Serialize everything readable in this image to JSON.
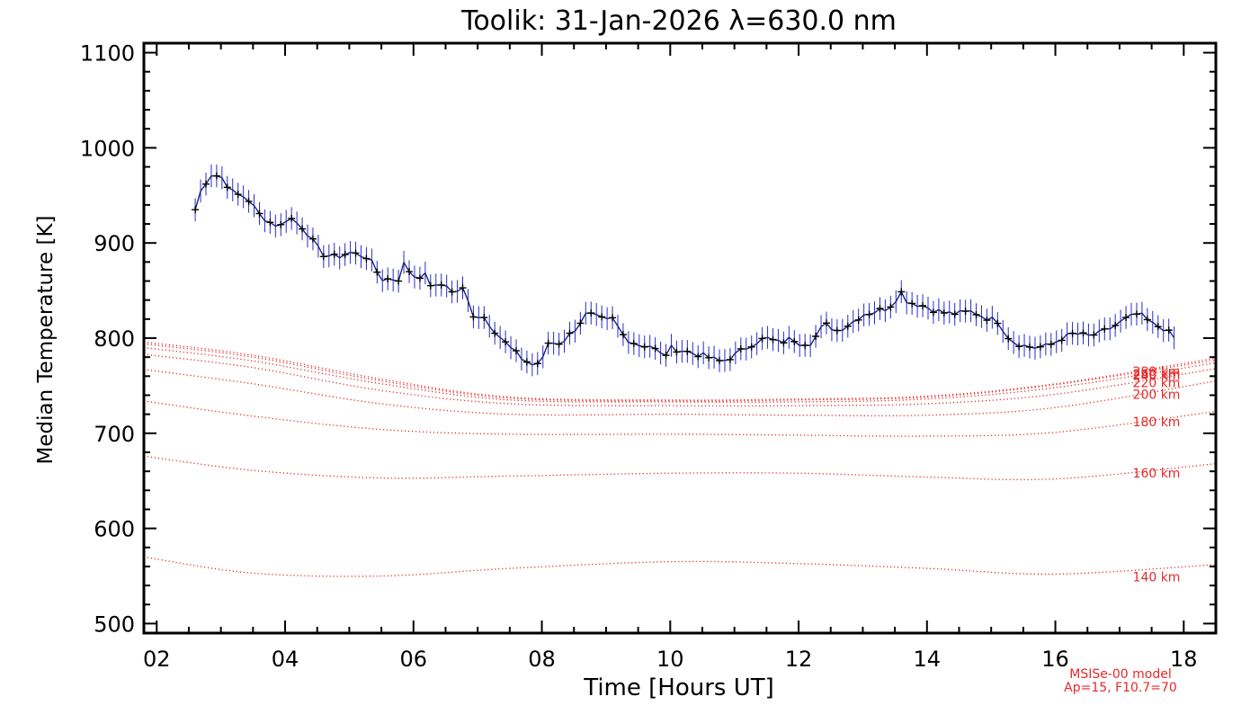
{
  "chart_data": {
    "type": "line",
    "title": "Toolik: 31-Jan-2026 λ=630.0 nm",
    "xlabel": "Time [Hours UT]",
    "ylabel": "Median Temperature [K]",
    "xlim": [
      1.8,
      18.5
    ],
    "ylim": [
      490,
      1110
    ],
    "x_ticks": [
      2,
      4,
      6,
      8,
      10,
      12,
      14,
      16,
      18
    ],
    "x_tick_labels": [
      "02",
      "04",
      "06",
      "08",
      "10",
      "12",
      "14",
      "16",
      "18"
    ],
    "y_ticks": [
      500,
      600,
      700,
      800,
      900,
      1000,
      1100
    ],
    "y_tick_labels": [
      "500",
      "600",
      "700",
      "800",
      "900",
      "1000",
      "1100"
    ],
    "measured": {
      "name": "Median temperature",
      "color": "#1a237e",
      "error_bar_color": "#2a2ad0",
      "error": 12,
      "anchors": [
        [
          2.6,
          935
        ],
        [
          2.7,
          958
        ],
        [
          2.85,
          972
        ],
        [
          3.0,
          970
        ],
        [
          3.2,
          952
        ],
        [
          3.4,
          948
        ],
        [
          3.6,
          930
        ],
        [
          3.8,
          920
        ],
        [
          3.95,
          918
        ],
        [
          4.05,
          928
        ],
        [
          4.3,
          915
        ],
        [
          4.5,
          895
        ],
        [
          4.6,
          888
        ],
        [
          4.8,
          885
        ],
        [
          5.0,
          890
        ],
        [
          5.3,
          885
        ],
        [
          5.5,
          862
        ],
        [
          5.8,
          862
        ],
        [
          5.85,
          878
        ],
        [
          6.0,
          865
        ],
        [
          6.2,
          866
        ],
        [
          6.3,
          852
        ],
        [
          6.5,
          858
        ],
        [
          6.6,
          848
        ],
        [
          6.8,
          852
        ],
        [
          6.9,
          825
        ],
        [
          7.1,
          822
        ],
        [
          7.3,
          805
        ],
        [
          7.5,
          790
        ],
        [
          7.7,
          778
        ],
        [
          7.85,
          772
        ],
        [
          8.0,
          775
        ],
        [
          8.1,
          795
        ],
        [
          8.3,
          795
        ],
        [
          8.5,
          808
        ],
        [
          8.7,
          826
        ],
        [
          8.85,
          822
        ],
        [
          9.0,
          818
        ],
        [
          9.1,
          820
        ],
        [
          9.3,
          800
        ],
        [
          9.5,
          793
        ],
        [
          9.7,
          792
        ],
        [
          9.9,
          780
        ],
        [
          10.0,
          790
        ],
        [
          10.3,
          785
        ],
        [
          10.5,
          782
        ],
        [
          10.8,
          775
        ],
        [
          11.0,
          782
        ],
        [
          11.3,
          795
        ],
        [
          11.5,
          800
        ],
        [
          11.7,
          795
        ],
        [
          11.9,
          800
        ],
        [
          12.0,
          795
        ],
        [
          12.2,
          795
        ],
        [
          12.4,
          815
        ],
        [
          12.6,
          808
        ],
        [
          12.8,
          815
        ],
        [
          13.0,
          825
        ],
        [
          13.2,
          828
        ],
        [
          13.4,
          832
        ],
        [
          13.6,
          848
        ],
        [
          13.7,
          838
        ],
        [
          13.9,
          835
        ],
        [
          14.1,
          830
        ],
        [
          14.3,
          826
        ],
        [
          14.5,
          826
        ],
        [
          14.7,
          828
        ],
        [
          14.9,
          822
        ],
        [
          15.1,
          818
        ],
        [
          15.3,
          798
        ],
        [
          15.5,
          792
        ],
        [
          15.7,
          790
        ],
        [
          15.9,
          792
        ],
        [
          16.1,
          800
        ],
        [
          16.3,
          805
        ],
        [
          16.5,
          802
        ],
        [
          16.7,
          805
        ],
        [
          16.9,
          812
        ],
        [
          17.1,
          820
        ],
        [
          17.3,
          826
        ],
        [
          17.5,
          815
        ],
        [
          17.7,
          810
        ],
        [
          17.85,
          800
        ]
      ]
    },
    "model_series": [
      {
        "name": "140 km",
        "label": "140 km",
        "values": [
          [
            1.8,
            570
          ],
          [
            3.5,
            553
          ],
          [
            5.5,
            550
          ],
          [
            7.5,
            558
          ],
          [
            10.0,
            565
          ],
          [
            12.0,
            563
          ],
          [
            14.0,
            558
          ],
          [
            16.0,
            552
          ],
          [
            18.5,
            562
          ]
        ]
      },
      {
        "name": "160 km",
        "label": "160 km",
        "values": [
          [
            1.8,
            676
          ],
          [
            3.5,
            661
          ],
          [
            5.5,
            653
          ],
          [
            7.5,
            655
          ],
          [
            10.0,
            658
          ],
          [
            12.0,
            658
          ],
          [
            14.0,
            654
          ],
          [
            16.0,
            652
          ],
          [
            18.5,
            668
          ]
        ]
      },
      {
        "name": "180 km",
        "label": "180 km",
        "values": [
          [
            1.8,
            734
          ],
          [
            3.5,
            718
          ],
          [
            5.5,
            704
          ],
          [
            7.5,
            699
          ],
          [
            10.0,
            699
          ],
          [
            12.0,
            698
          ],
          [
            14.0,
            697
          ],
          [
            16.0,
            701
          ],
          [
            18.5,
            723
          ]
        ]
      },
      {
        "name": "200 km",
        "label": "200 km",
        "values": [
          [
            1.8,
            767
          ],
          [
            3.5,
            752
          ],
          [
            5.5,
            731
          ],
          [
            7.5,
            720
          ],
          [
            10.0,
            720
          ],
          [
            12.0,
            719
          ],
          [
            14.0,
            719
          ],
          [
            16.0,
            727
          ],
          [
            18.5,
            755
          ]
        ]
      },
      {
        "name": "220 km",
        "label": "220 km",
        "values": [
          [
            1.8,
            783
          ],
          [
            3.5,
            769
          ],
          [
            5.5,
            745
          ],
          [
            7.5,
            731
          ],
          [
            10.0,
            729
          ],
          [
            12.0,
            729
          ],
          [
            14.0,
            731
          ],
          [
            16.0,
            741
          ],
          [
            18.5,
            768
          ]
        ]
      },
      {
        "name": "240 km",
        "label": "240 km",
        "values": [
          [
            1.8,
            790
          ],
          [
            3.5,
            776
          ],
          [
            5.5,
            752
          ],
          [
            7.5,
            735
          ],
          [
            10.0,
            733
          ],
          [
            12.0,
            733
          ],
          [
            14.0,
            736
          ],
          [
            16.0,
            748
          ],
          [
            18.5,
            774
          ]
        ]
      },
      {
        "name": "260 km",
        "label": "260 km",
        "values": [
          [
            1.8,
            794
          ],
          [
            3.5,
            780
          ],
          [
            5.5,
            755
          ],
          [
            7.5,
            737
          ],
          [
            10.0,
            734
          ],
          [
            12.0,
            735
          ],
          [
            14.0,
            738
          ],
          [
            16.0,
            751
          ],
          [
            18.5,
            777
          ]
        ]
      },
      {
        "name": "280 km",
        "label": "280 km",
        "values": [
          [
            1.8,
            796
          ],
          [
            3.5,
            782
          ],
          [
            5.5,
            757
          ],
          [
            7.5,
            738
          ],
          [
            10.0,
            735
          ],
          [
            12.0,
            736
          ],
          [
            14.0,
            739
          ],
          [
            16.0,
            752
          ],
          [
            18.5,
            779
          ]
        ]
      }
    ],
    "model_label_values": {
      "140 km": 549,
      "160 km": 658,
      "180 km": 712,
      "200 km": 741,
      "220 km": 753,
      "240 km": 761,
      "260 km": 762,
      "280 km": 765
    },
    "model_color": "#e82828",
    "footnote": [
      "MSISe-00 model",
      "Ap=15, F10.7=70"
    ]
  }
}
